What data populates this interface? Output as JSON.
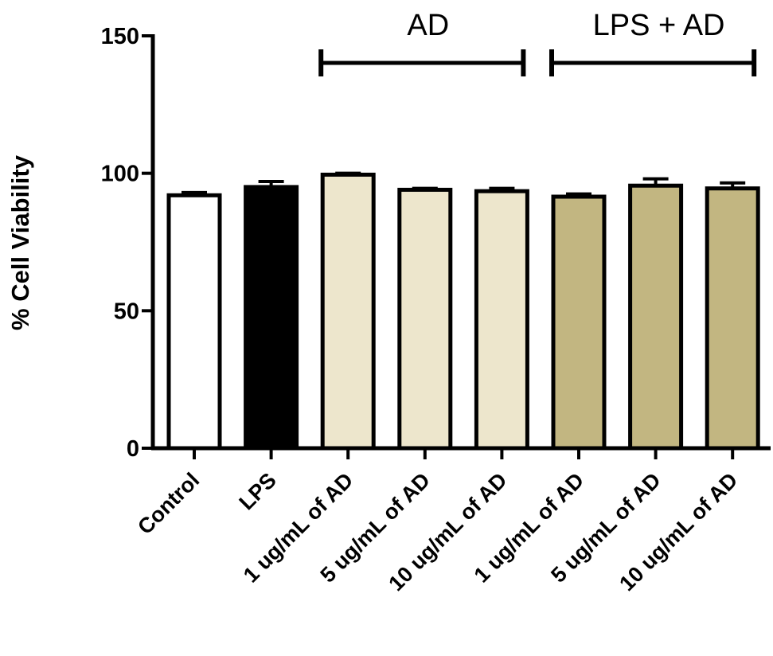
{
  "chart_data": {
    "type": "bar",
    "ylabel": "% Cell Viability",
    "ylim": [
      0,
      150
    ],
    "yticks": [
      0,
      50,
      100,
      150
    ],
    "grid": false,
    "categories": [
      "Control",
      "LPS",
      "1 ug/mL of AD",
      "5 ug/mL of AD",
      "10 ug/mL of AD",
      "1 ug/mL of AD",
      "5 ug/mL of AD",
      "10 ug/mL of AD"
    ],
    "values": [
      92,
      95,
      99.5,
      94,
      93.5,
      91.5,
      95.5,
      94.5
    ],
    "errors": [
      1,
      2,
      0.5,
      0.5,
      1,
      1,
      2.5,
      2
    ],
    "colors": [
      "#ffffff",
      "#000000",
      "#ede6cc",
      "#ede6cc",
      "#ede6cc",
      "#c2b681",
      "#c2b681",
      "#c2b681"
    ],
    "groups": [
      {
        "label": "AD",
        "from": 2,
        "to": 4
      },
      {
        "label": "LPS + AD",
        "from": 5,
        "to": 7
      }
    ]
  }
}
